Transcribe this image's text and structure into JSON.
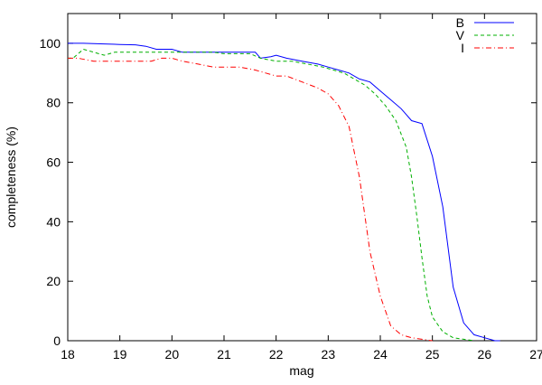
{
  "chart_data": {
    "type": "line",
    "xlabel": "mag",
    "ylabel": "completeness (%)",
    "xlim": [
      18,
      27
    ],
    "ylim": [
      0,
      110
    ],
    "xticks": [
      18,
      19,
      20,
      21,
      22,
      23,
      24,
      25,
      26,
      27
    ],
    "yticks": [
      0,
      20,
      40,
      60,
      80,
      100
    ],
    "grid": false,
    "legend_position": "top-right",
    "series": [
      {
        "name": "B",
        "color": "#0000ff",
        "dash": "solid",
        "x": [
          18.0,
          18.3,
          18.7,
          19.0,
          19.3,
          19.5,
          19.7,
          19.9,
          20.0,
          20.2,
          20.5,
          20.8,
          21.0,
          21.3,
          21.6,
          21.7,
          21.9,
          22.0,
          22.2,
          22.5,
          22.8,
          23.0,
          23.2,
          23.4,
          23.6,
          23.8,
          24.0,
          24.2,
          24.4,
          24.6,
          24.8,
          25.0,
          25.2,
          25.4,
          25.6,
          25.8,
          26.0,
          26.2,
          26.3
        ],
        "y": [
          100,
          100,
          99.8,
          99.6,
          99.5,
          99,
          98,
          98,
          98,
          97,
          97,
          97,
          97,
          97,
          97,
          95,
          95.5,
          96,
          95,
          94,
          93,
          92,
          91,
          90,
          88,
          87,
          84,
          81,
          78,
          74,
          73,
          62,
          45,
          18,
          6,
          2,
          1,
          0,
          0
        ]
      },
      {
        "name": "V",
        "color": "#00b000",
        "dash": "dashed",
        "x": [
          18.0,
          18.1,
          18.3,
          18.5,
          18.7,
          18.9,
          19.0,
          19.3,
          19.6,
          19.8,
          20.0,
          20.2,
          20.5,
          20.8,
          21.0,
          21.2,
          21.5,
          21.7,
          22.0,
          22.3,
          22.6,
          22.9,
          23.1,
          23.3,
          23.5,
          23.7,
          23.9,
          24.1,
          24.3,
          24.5,
          24.6,
          24.7,
          24.8,
          24.9,
          25.0,
          25.2,
          25.4,
          25.6,
          25.8
        ],
        "y": [
          95,
          95,
          98,
          97,
          96,
          97,
          97,
          97,
          97,
          97,
          97,
          97,
          97,
          97,
          96.5,
          96.5,
          96.5,
          95,
          94,
          94,
          93,
          92,
          91,
          90,
          88,
          86,
          83,
          79,
          74,
          65,
          55,
          42,
          28,
          15,
          8,
          3,
          1,
          0.5,
          0
        ]
      },
      {
        "name": "I",
        "color": "#ff0000",
        "dash": "dashdot",
        "x": [
          18.0,
          18.2,
          18.5,
          18.8,
          19.0,
          19.3,
          19.6,
          19.8,
          20.0,
          20.2,
          20.5,
          20.8,
          21.0,
          21.3,
          21.6,
          21.8,
          22.0,
          22.2,
          22.5,
          22.8,
          23.0,
          23.2,
          23.4,
          23.6,
          23.8,
          24.0,
          24.2,
          24.4,
          24.6,
          24.8,
          25.0
        ],
        "y": [
          95,
          95,
          94,
          94,
          94,
          94,
          94,
          95,
          95,
          94,
          93,
          92,
          92,
          92,
          91,
          90,
          89,
          89,
          87,
          85,
          83,
          79,
          72,
          55,
          30,
          15,
          5,
          2,
          1,
          0.5,
          0
        ]
      }
    ]
  }
}
